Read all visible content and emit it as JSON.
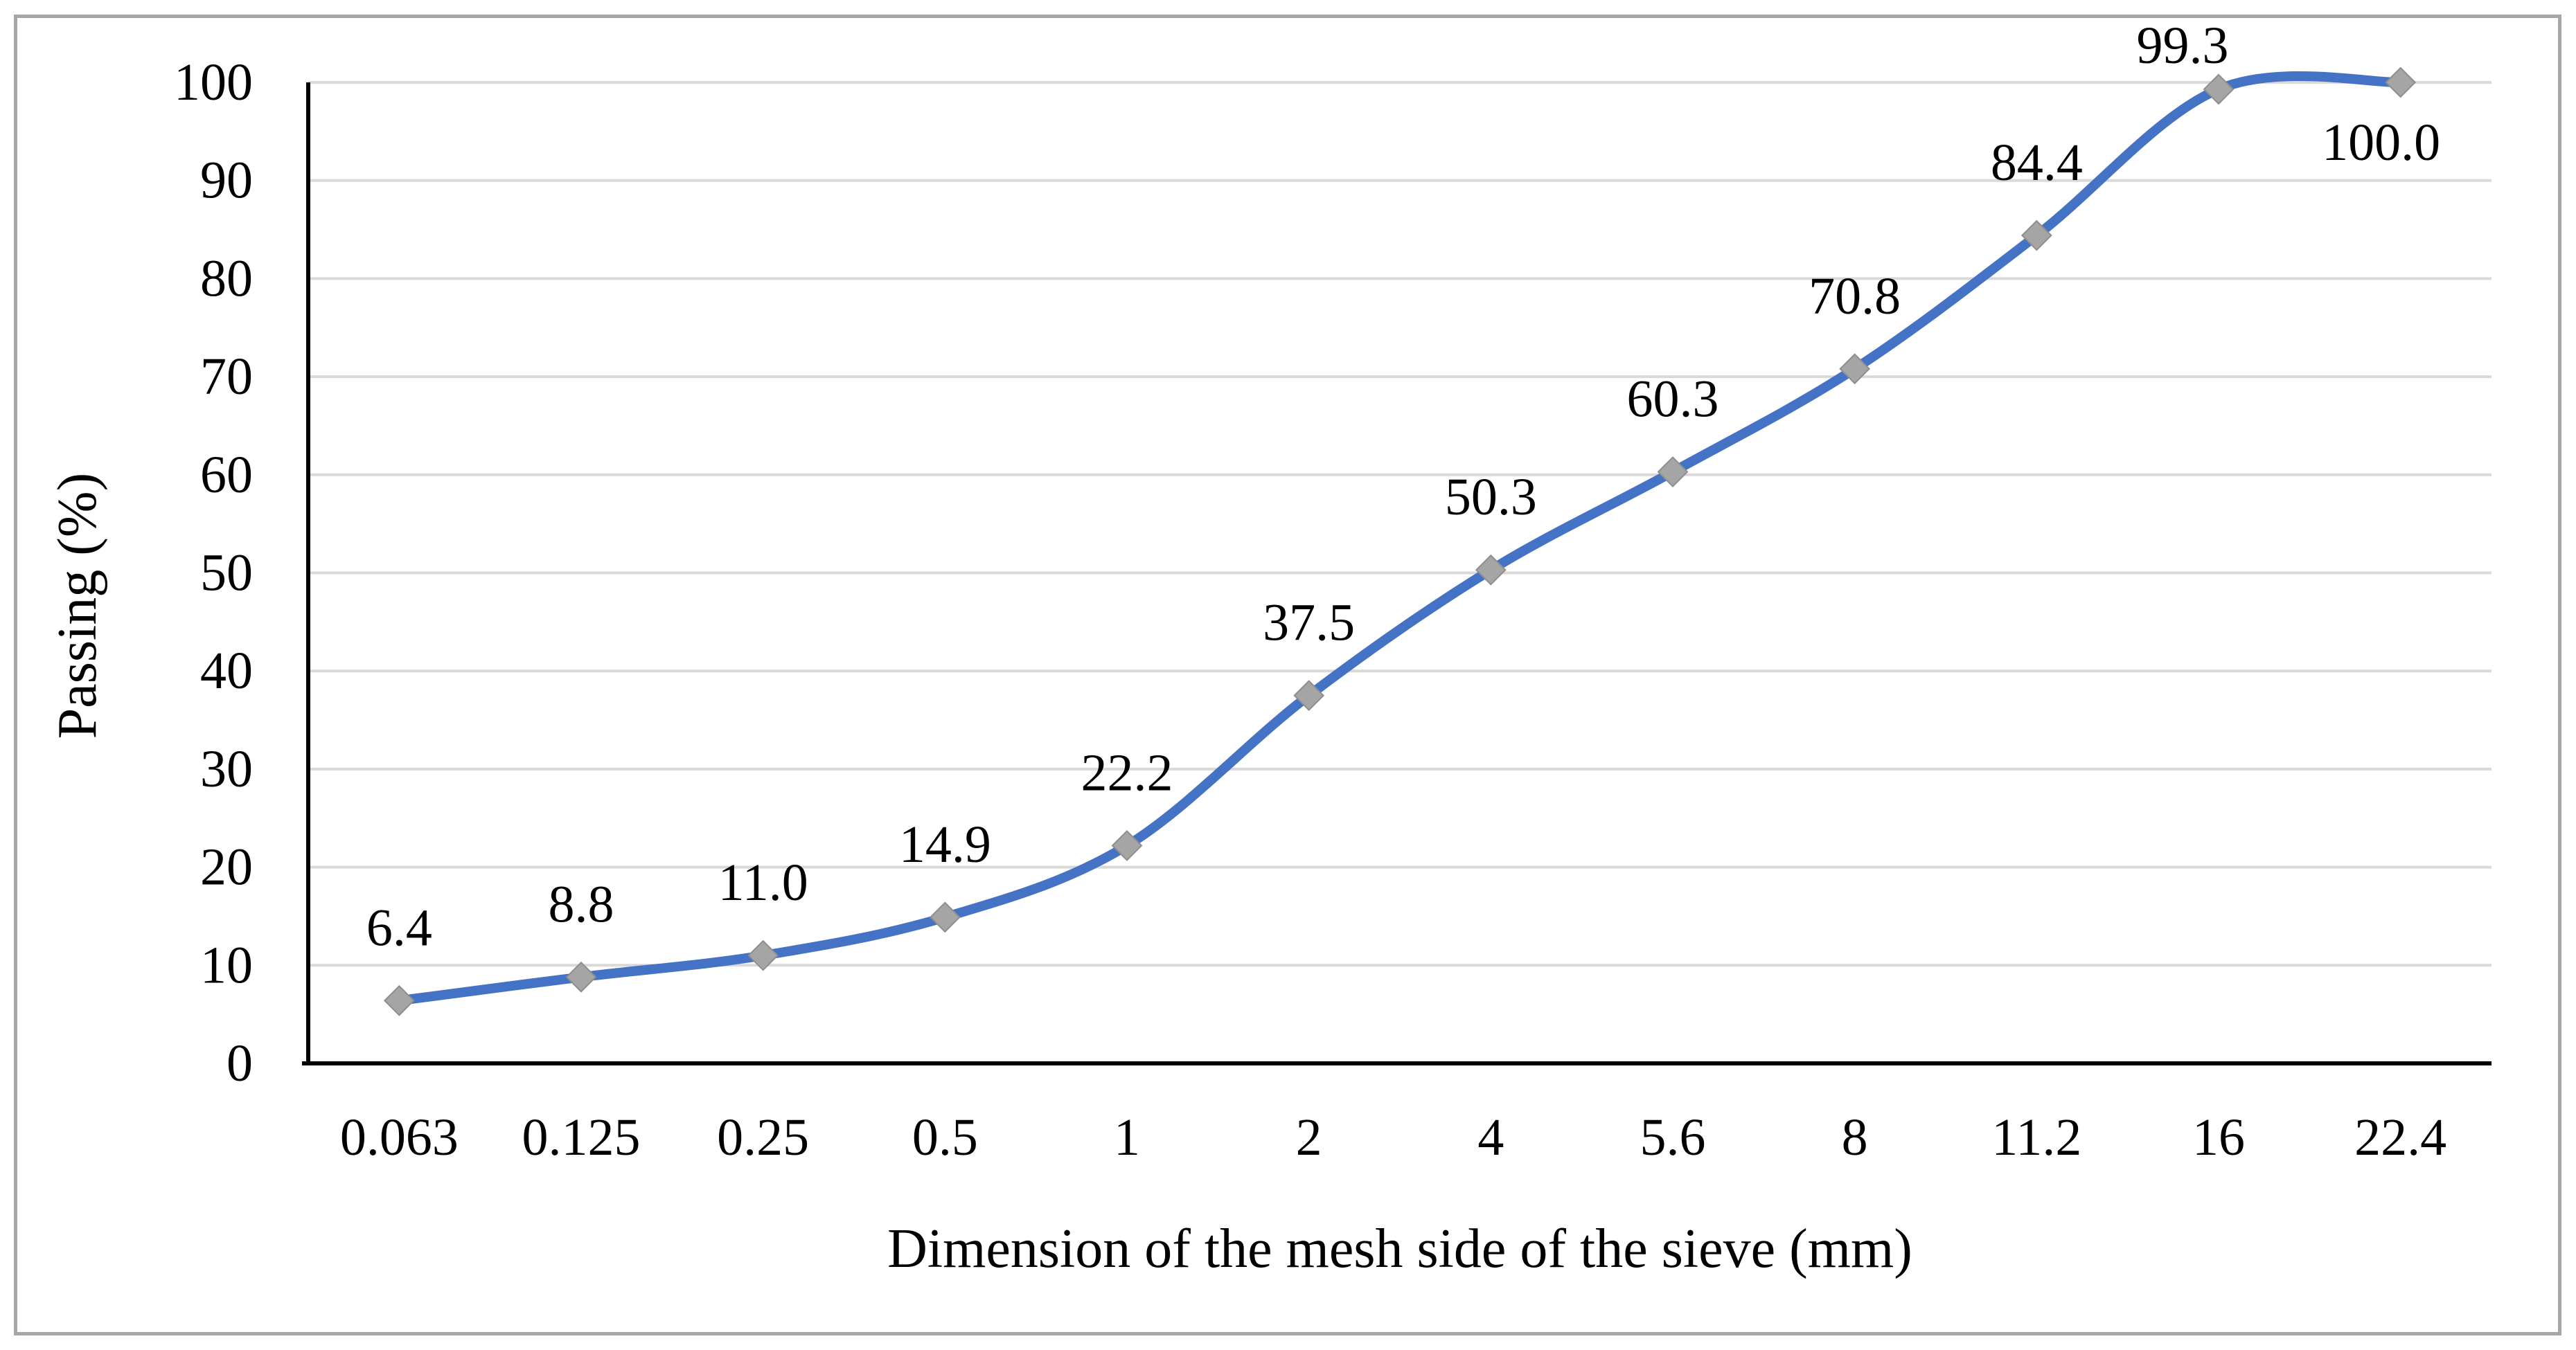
{
  "figure": {
    "background": "#FFFFFF",
    "border_color": "#A6A6A6"
  },
  "chart_data": {
    "type": "line",
    "title": "",
    "xlabel": "Dimension of the mesh side of the sieve (mm)",
    "ylabel": "Passing (%)",
    "categories": [
      "0.063",
      "0.125",
      "0.25",
      "0.5",
      "1",
      "2",
      "4",
      "5.6",
      "8",
      "11.2",
      "16",
      "22.4"
    ],
    "series": [
      {
        "name": "passing-percent",
        "values": [
          6.4,
          8.8,
          11.0,
          14.9,
          22.2,
          37.5,
          50.3,
          60.3,
          70.8,
          84.4,
          99.3,
          100.0
        ],
        "data_labels": [
          "6.4",
          "8.8",
          "11.0",
          "14.9",
          "22.2",
          "37.5",
          "50.3",
          "60.3",
          "70.8",
          "84.4",
          "99.3",
          "100.0"
        ]
      }
    ],
    "ylim": [
      0,
      100
    ],
    "yticks": [
      0,
      10,
      20,
      30,
      40,
      50,
      60,
      70,
      80,
      90,
      100
    ],
    "grid": "horizontal",
    "legend_position": "none",
    "line_smoothed": true,
    "marker_shape": "diamond",
    "colors": {
      "line": "#4472C4",
      "marker_fill": "#A5A5A5",
      "marker_border": "#8E8E8E",
      "gridline": "#D9D9D9",
      "axis": "#000000",
      "text": "#000000"
    }
  }
}
